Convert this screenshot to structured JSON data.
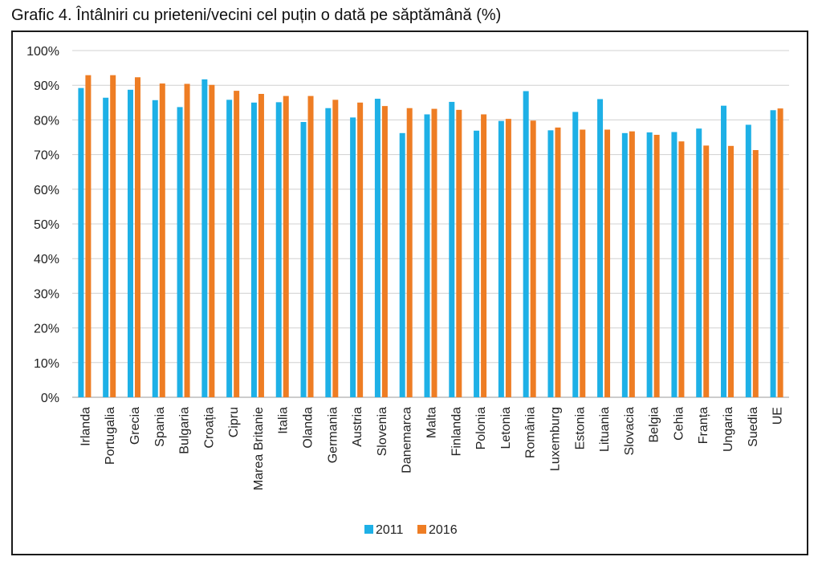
{
  "title": "Grafic 4. Întâlniri cu prieteni/vecini cel puțin o dată pe săptămână (%)",
  "chart_data": {
    "type": "bar",
    "title": "Grafic 4. Întâlniri cu prieteni/vecini cel puțin o dată pe săptămână (%)",
    "xlabel": "",
    "ylabel": "",
    "ylim": [
      0,
      100
    ],
    "yticks": [
      0,
      10,
      20,
      30,
      40,
      50,
      60,
      70,
      80,
      90,
      100
    ],
    "ytick_suffix": "%",
    "grid": true,
    "legend": "bottom",
    "categories": [
      "Irlanda",
      "Portugalia",
      "Grecia",
      "Spania",
      "Bulgaria",
      "Croația",
      "Cipru",
      "Marea Britanie",
      "Italia",
      "Olanda",
      "Germania",
      "Austria",
      "Slovenia",
      "Danemarca",
      "Malta",
      "Finlanda",
      "Polonia",
      "Letonia",
      "România",
      "Luxemburg",
      "Estonia",
      "Lituania",
      "Slovacia",
      "Belgia",
      "Cehia",
      "Franța",
      "Ungaria",
      "Suedia",
      "UE"
    ],
    "series": [
      {
        "name": "2011",
        "color": "#1EB0E6",
        "values": [
          89.2,
          86.4,
          88.7,
          85.7,
          83.7,
          91.7,
          85.8,
          85.0,
          85.1,
          79.4,
          83.4,
          80.7,
          86.1,
          76.2,
          81.6,
          85.2,
          76.9,
          79.7,
          88.3,
          77.0,
          82.3,
          86.0,
          76.2,
          76.4,
          76.5,
          77.5,
          84.1,
          78.6,
          82.8
        ]
      },
      {
        "name": "2016",
        "color": "#EE7D24",
        "values": [
          92.9,
          92.9,
          92.3,
          90.5,
          90.4,
          90.1,
          88.4,
          87.5,
          86.9,
          86.9,
          85.8,
          85.0,
          84.0,
          83.4,
          83.2,
          82.9,
          81.6,
          80.3,
          79.8,
          77.8,
          77.2,
          77.2,
          76.7,
          75.7,
          73.8,
          72.6,
          72.5,
          71.3,
          83.3
        ]
      }
    ]
  }
}
